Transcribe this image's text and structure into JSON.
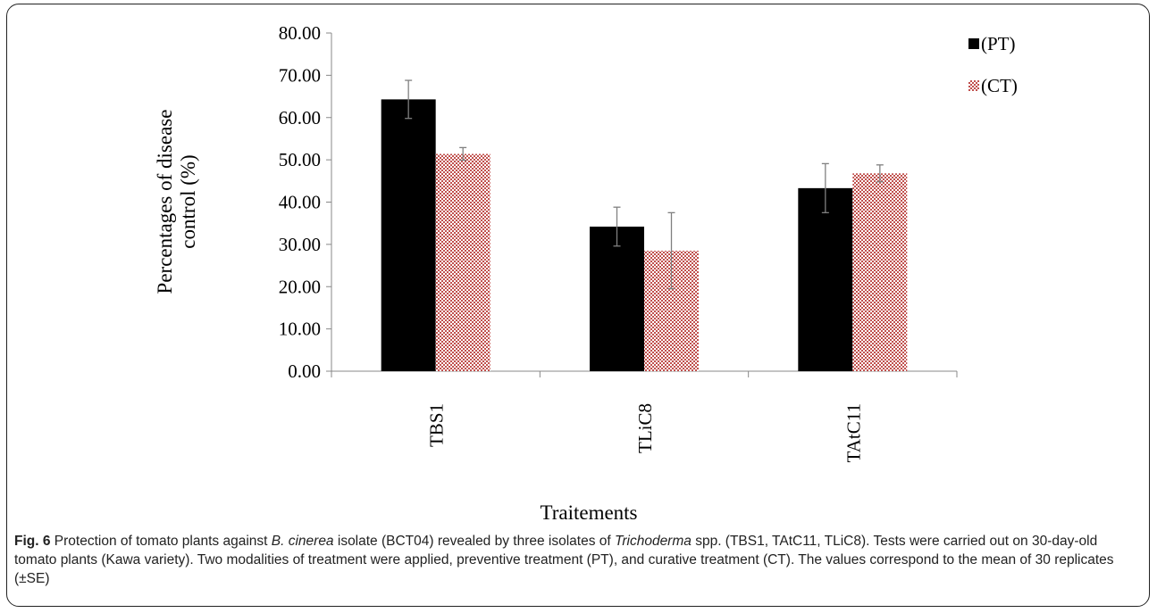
{
  "chart_data": {
    "type": "bar",
    "categories": [
      "TBS1",
      "TLiC8",
      "TAtC11"
    ],
    "series": [
      {
        "name": "(PT)",
        "values": [
          64.3,
          34.2,
          43.3
        ],
        "errors": [
          4.5,
          4.6,
          5.8
        ],
        "color": "#000000",
        "pattern": "solid"
      },
      {
        "name": "(CT)",
        "values": [
          51.4,
          28.5,
          46.8
        ],
        "errors": [
          1.5,
          9.0,
          2.0
        ],
        "color": "#c0504d",
        "pattern": "checker"
      }
    ],
    "xlabel": "Traitements",
    "ylabel_lines": [
      "Percentages of disease",
      "control (%)"
    ],
    "ylim": [
      0,
      80
    ],
    "yticks": [
      "0.00",
      "10.00",
      "20.00",
      "30.00",
      "40.00",
      "50.00",
      "60.00",
      "70.00",
      "80.00"
    ],
    "legend_position": "top-right",
    "grid": false
  },
  "caption": {
    "label": "Fig. 6",
    "parts": [
      {
        "text": " Protection of tomato plants against ",
        "italic": false
      },
      {
        "text": "B. cinerea",
        "italic": true
      },
      {
        "text": " isolate (BCT04) revealed by three isolates of ",
        "italic": false
      },
      {
        "text": "Trichoderma",
        "italic": true
      },
      {
        "text": " spp. (TBS1, TAtC11, TLiC8). Tests were carried out on 30-day-old tomato plants (Kawa variety). Two modalities of treatment were applied, preventive treatment (PT), and curative treatment (CT). The values correspond to the mean of 30 replicates (±SE)",
        "italic": false
      }
    ]
  }
}
